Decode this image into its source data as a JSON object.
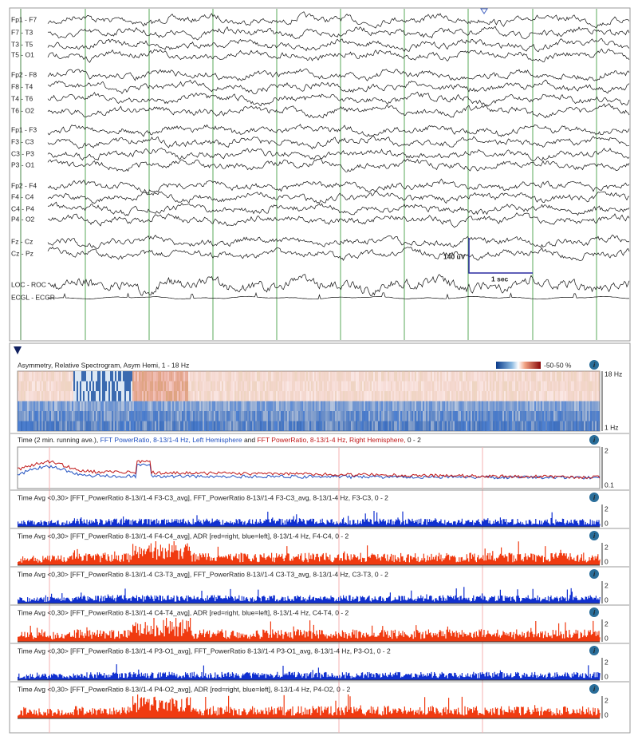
{
  "eeg": {
    "channels": [
      "Fp1 - F7",
      "F7 - T3",
      "T3 - T5",
      "T5 - O1",
      "Fp2 - F8",
      "F8 - T4",
      "T4 - T6",
      "T6 - O2",
      "Fp1 - F3",
      "F3 - C3",
      "C3 - P3",
      "P3 - O1",
      "Fp2 - F4",
      "F4 - C4",
      "C4 - P4",
      "P4 - O2",
      "Fz - Cz",
      "Cz - Pz",
      "LOC - ROC",
      "ECGL - ECGR"
    ],
    "amplitude_label": "140 uV",
    "time_label": "1 sec"
  },
  "trends": {
    "spectrogram": {
      "title": "Asymmetry, Relative Spectrogram, Asym Hemi, 1 - 18 Hz",
      "colorbar_label": "-50-50 %",
      "top_label": "18 Hz",
      "bottom_label": "1 Hz"
    },
    "ratio": {
      "title_parts": [
        {
          "text": "Time (2 min. running ave.), ",
          "color": "#222222"
        },
        {
          "text": "FFT PowerRatio, 8-13/1-4 Hz, Left Hemisphere",
          "color": "#2050c0"
        },
        {
          "text": " and ",
          "color": "#222222"
        },
        {
          "text": "FFT PowerRatio, 8-13/1-4 Hz, Right Hemisphere,",
          "color": "#c01818"
        },
        {
          "text": "  0 - 2",
          "color": "#222222"
        }
      ],
      "top_label": "2",
      "bottom_label": "0.1"
    },
    "bars": [
      {
        "title": "Time Avg <0,30> [FFT_PowerRatio 8-13//1-4 F3-C3_avg], FFT_PowerRatio 8-13//1-4 F3-C3_avg, 8-13/1-4 Hz, F3-C3, 0 - 2",
        "color": "#1030d0",
        "top_label": "2",
        "bottom_label": "0"
      },
      {
        "title": "Time Avg <0,30> [FFT_PowerRatio 8-13//1-4 F4-C4_avg], ADR [red=right, blue=left], 8-13/1-4 Hz, F4-C4, 0 - 2",
        "color": "#f03a10",
        "top_label": "2",
        "bottom_label": "0"
      },
      {
        "title": "Time Avg <0,30> [FFT_PowerRatio 8-13//1-4 C3-T3_avg], FFT_PowerRatio 8-13//1-4 C3-T3_avg, 8-13/1-4 Hz, C3-T3, 0 - 2",
        "color": "#1030d0",
        "top_label": "2",
        "bottom_label": "0"
      },
      {
        "title": "Time Avg <0,30> [FFT_PowerRatio 8-13//1-4 C4-T4_avg], ADR [red=right, blue=left], 8-13/1-4 Hz, C4-T4, 0 - 2",
        "color": "#f03a10",
        "top_label": "2",
        "bottom_label": "0"
      },
      {
        "title": "Time Avg <0,30> [FFT_PowerRatio 8-13//1-4 P3-O1_avg], FFT_PowerRatio 8-13//1-4 P3-O1_avg, 8-13/1-4 Hz, P3-O1, 0 - 2",
        "color": "#1030d0",
        "top_label": "2",
        "bottom_label": "0"
      },
      {
        "title": "Time Avg <0,30> [FFT_PowerRatio 8-13//1-4 P4-O2_avg], ADR [red=right, blue=left], 8-13/1-4 Hz, P4-O2, 0 - 2",
        "color": "#f03a10",
        "top_label": "2",
        "bottom_label": "0"
      }
    ]
  }
}
